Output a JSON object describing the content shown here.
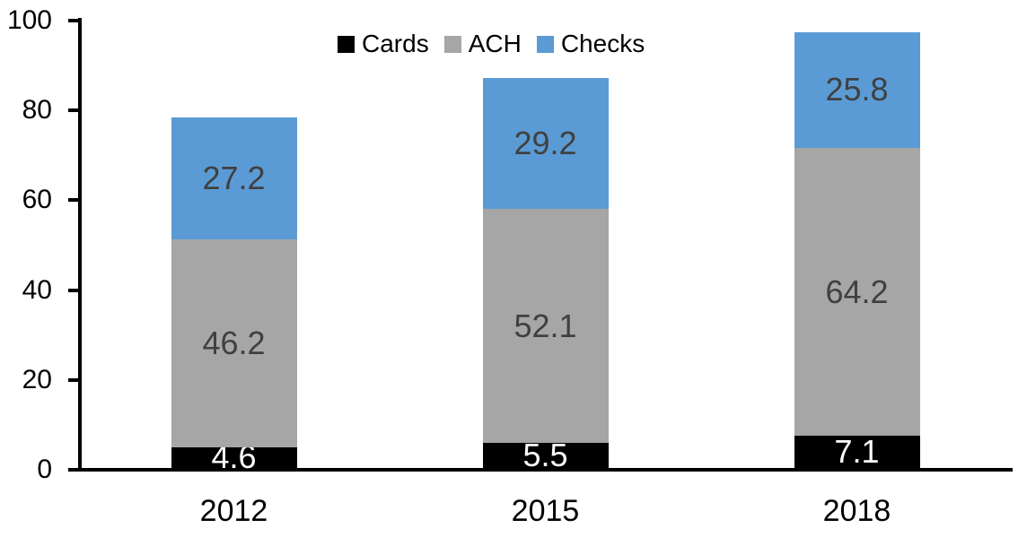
{
  "chart_data": {
    "type": "bar",
    "stacked": true,
    "title": "",
    "categories": [
      "2012",
      "2015",
      "2018"
    ],
    "series": [
      {
        "name": "Cards",
        "color": "#000000",
        "label_color": "#FFFFFF",
        "values": [
          4.6,
          5.5,
          7.1
        ]
      },
      {
        "name": "ACH",
        "color": "#A6A6A6",
        "label_color": "#404040",
        "values": [
          46.2,
          52.1,
          64.2
        ]
      },
      {
        "name": "Checks",
        "color": "#5B9BD5",
        "label_color": "#404040",
        "values": [
          27.2,
          29.2,
          25.8
        ]
      }
    ],
    "totals": [
      78.0,
      86.8,
      97.1
    ],
    "xlabel": "",
    "ylabel": "",
    "ylim": [
      0,
      100
    ],
    "yticks": [
      0,
      20,
      40,
      60,
      80,
      100
    ],
    "grid": false,
    "legend_position": "top-center",
    "axis_color": "#000000",
    "background_color": "#FFFFFF",
    "value_label_decimals": 1
  }
}
